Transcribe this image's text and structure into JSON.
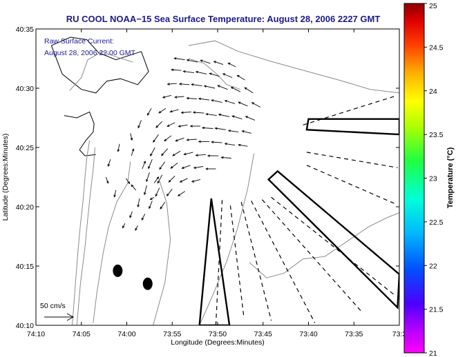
{
  "chart_data": {
    "type": "map",
    "title": "RU COOL  NOAA−15  Sea Surface Temperature:  August 28, 2006 2227 GMT",
    "inset_label": "Raw Surface Current:",
    "inset_time": "August 28, 2006 22:00 GMT",
    "scale_label": "50 cm/s",
    "xlabel": "Longitude (Degrees:Minutes)",
    "ylabel": "Latitude (Degrees:Minutes)",
    "colorbar_label": "Temperature (°C)",
    "x_ticks": [
      "74:10",
      "74:05",
      "74:00",
      "73:55",
      "73:50",
      "73:45",
      "73:40",
      "73:35",
      "73:3"
    ],
    "x_tick_minutes": [
      -610,
      -605,
      -600,
      -595,
      -590,
      -585,
      -580,
      -575,
      -570
    ],
    "y_ticks": [
      "40:35",
      "40:30",
      "40:25",
      "40:20",
      "40:15",
      "40:10"
    ],
    "y_tick_minutes": [
      2435,
      2430,
      2425,
      2420,
      2415,
      2410
    ],
    "xlim_minutes": [
      -610,
      -570
    ],
    "ylim_minutes": [
      2410,
      2435
    ],
    "colorbar_range": [
      21,
      25
    ],
    "colorbar_ticks": [
      "25",
      "24.5",
      "24",
      "23.5",
      "23",
      "22.5",
      "22",
      "21.5",
      "21"
    ],
    "colors": {
      "title": "#1a1a8c",
      "contour": "#8a8a8a",
      "vector": "#000000"
    },
    "land_masses": [
      {
        "name": "north-shore",
        "lon": [
          -608.3,
          -606.2,
          -604.4,
          -603.1,
          -601.2,
          -598.4,
          -597.6,
          -598.8,
          -600.7,
          -602.2,
          -603.4,
          -605,
          -607.1,
          -608.3
        ],
        "lat": [
          2433.6,
          2434.3,
          2434.1,
          2433,
          2432.4,
          2433.1,
          2431.4,
          2430.3,
          2430.8,
          2430.6,
          2429.6,
          2429.9,
          2431.2,
          2433.6
        ]
      },
      {
        "name": "inlet-shore",
        "lon": [
          -606.9,
          -605.5,
          -604.1,
          -603.6,
          -603.7,
          -604.5,
          -605.2,
          -604.6,
          -603.4
        ],
        "lat": [
          2427.7,
          2427.5,
          2428.0,
          2427.0,
          2426.3,
          2425.6,
          2424.8,
          2424.3,
          2424.4
        ]
      }
    ],
    "shoals": [
      {
        "lon": -601.0,
        "lat": 2414.6
      },
      {
        "lon": -597.7,
        "lat": 2413.5
      }
    ],
    "radial_lines": [
      {
        "lon": [
          -590.2,
          -589.5
        ],
        "lat": [
          2410.0,
          2420.6
        ]
      },
      {
        "lon": [
          -588.6,
          -587.1
        ],
        "lat": [
          2420.1,
          2410.6
        ]
      },
      {
        "lon": [
          -587.4,
          -584.1
        ],
        "lat": [
          2420.4,
          2410.4
        ]
      },
      {
        "lon": [
          -586.3,
          -579.3
        ],
        "lat": [
          2420.5,
          2410.2
        ]
      },
      {
        "lon": [
          -585.1,
          -574.1
        ],
        "lat": [
          2420.6,
          2411.1
        ]
      },
      {
        "lon": [
          -584.1,
          -570.6
        ],
        "lat": [
          2420.8,
          2412.6
        ]
      },
      {
        "lon": [
          -580.2,
          -570.3
        ],
        "lat": [
          2423.5,
          2420.2
        ]
      },
      {
        "lon": [
          -580.2,
          -570.2
        ],
        "lat": [
          2424.6,
          2423.3
        ]
      },
      {
        "lon": [
          -580.6,
          -570.6
        ],
        "lat": [
          2426.9,
          2429.3
        ]
      }
    ],
    "radar_cells": [
      {
        "lon": [
          -592.0,
          -590.7,
          -588.7,
          -590.7,
          -592.0
        ],
        "lat": [
          2410.0,
          2420.7,
          2410.0,
          2410.0,
          2410.0
        ]
      },
      {
        "lon": [
          -584.4,
          -583.4,
          -570.0,
          -570.2,
          -584.4
        ],
        "lat": [
          2422.3,
          2423.0,
          2414.3,
          2411.5,
          2422.3
        ]
      },
      {
        "lon": [
          -580.2,
          -580.0,
          -570.0,
          -570.0,
          -580.2
        ],
        "lat": [
          2426.5,
          2427.4,
          2427.4,
          2426.1,
          2426.5
        ]
      }
    ],
    "contours": [
      {
        "lon": [
          -606.0,
          -605.7,
          -605.4,
          -605.1,
          -604.8,
          -604.6,
          -604.4,
          -604.1
        ],
        "lat": [
          2410.0,
          2413.0,
          2416.0,
          2418.5,
          2420.6,
          2422.5,
          2424.1,
          2425.6
        ]
      },
      {
        "lon": [
          -605.5,
          -605.1,
          -604.6,
          -604.3,
          -604.0,
          -603.7,
          -603.5
        ],
        "lat": [
          2410.0,
          2413.5,
          2416.6,
          2419.0,
          2421.2,
          2423.1,
          2425.0
        ]
      },
      {
        "lon": [
          -603.7,
          -603.3,
          -602.6,
          -602.0,
          -601.1,
          -599.9,
          -599.6
        ],
        "lat": [
          2410.2,
          2412.7,
          2416.1,
          2418.3,
          2420.4,
          2422.0,
          2423.8
        ]
      },
      {
        "lon": [
          -597.1,
          -595.8,
          -595.2,
          -595.6,
          -596.4
        ],
        "lat": [
          2410.0,
          2413.6,
          2417.2,
          2420.3,
          2422.2
        ]
      },
      {
        "lon": [
          -592.0,
          -590.5,
          -589.0,
          -587.8,
          -586.7,
          -586.0
        ],
        "lat": [
          2410.0,
          2412.6,
          2415.4,
          2418.2,
          2421.5,
          2424.5
        ]
      },
      {
        "lon": [
          -586.5,
          -584.6,
          -582.7,
          -580.6,
          -578.2,
          -575.9,
          -573.4,
          -571.3,
          -570.0
        ],
        "lat": [
          2415.3,
          2414.0,
          2414.4,
          2415.6,
          2415.8,
          2417.0,
          2418.3,
          2419.1,
          2419.5
        ]
      },
      {
        "lon": [
          -593.2,
          -590.3,
          -587.7,
          -584.3,
          -581.0,
          -576.7,
          -573.2,
          -570.0
        ],
        "lat": [
          2433.6,
          2434.0,
          2433.1,
          2432.3,
          2431.6,
          2430.7,
          2429.9,
          2429.6
        ]
      },
      {
        "lon": [
          -593.2,
          -591.5,
          -590.1,
          -589.0,
          -587.5
        ],
        "lat": [
          2432.5,
          2432.1,
          2431.2,
          2430.3,
          2429.9
        ]
      },
      {
        "lon": [
          -606.3,
          -605.0,
          -604.3,
          -602.7,
          -601.0,
          -599.3
        ],
        "lat": [
          2429.8,
          2430.9,
          2432.4,
          2433.1,
          2432.6,
          2432.2
        ]
      }
    ],
    "current_vectors": [
      {
        "lon": -593.6,
        "lat": 2432.4,
        "u": -14,
        "v": 2
      },
      {
        "lon": -592.2,
        "lat": 2432.2,
        "u": -14,
        "v": 3
      },
      {
        "lon": -590.8,
        "lat": 2432.1,
        "u": -13,
        "v": 4
      },
      {
        "lon": -589.4,
        "lat": 2432.0,
        "u": -12,
        "v": 4
      },
      {
        "lon": -588.0,
        "lat": 2431.8,
        "u": -10,
        "v": 5
      },
      {
        "lon": -594.0,
        "lat": 2431.5,
        "u": -13,
        "v": 1
      },
      {
        "lon": -592.6,
        "lat": 2431.3,
        "u": -14,
        "v": 2
      },
      {
        "lon": -591.2,
        "lat": 2431.2,
        "u": -14,
        "v": 3
      },
      {
        "lon": -589.8,
        "lat": 2431.0,
        "u": -13,
        "v": 4
      },
      {
        "lon": -588.4,
        "lat": 2430.9,
        "u": -12,
        "v": 5
      },
      {
        "lon": -587.0,
        "lat": 2430.7,
        "u": -10,
        "v": 6
      },
      {
        "lon": -594.5,
        "lat": 2430.4,
        "u": -12,
        "v": -1
      },
      {
        "lon": -593.1,
        "lat": 2430.3,
        "u": -13,
        "v": 1
      },
      {
        "lon": -591.7,
        "lat": 2430.2,
        "u": -14,
        "v": 2
      },
      {
        "lon": -590.3,
        "lat": 2430.0,
        "u": -14,
        "v": 3
      },
      {
        "lon": -588.9,
        "lat": 2429.9,
        "u": -13,
        "v": 5
      },
      {
        "lon": -587.5,
        "lat": 2429.7,
        "u": -12,
        "v": 6
      },
      {
        "lon": -586.1,
        "lat": 2429.6,
        "u": -11,
        "v": 7
      },
      {
        "lon": -595.1,
        "lat": 2429.4,
        "u": -11,
        "v": -3
      },
      {
        "lon": -593.7,
        "lat": 2429.3,
        "u": -12,
        "v": -1
      },
      {
        "lon": -592.3,
        "lat": 2429.1,
        "u": -13,
        "v": 1
      },
      {
        "lon": -590.9,
        "lat": 2429.0,
        "u": -14,
        "v": 2
      },
      {
        "lon": -589.5,
        "lat": 2428.8,
        "u": -14,
        "v": 3
      },
      {
        "lon": -588.1,
        "lat": 2428.7,
        "u": -13,
        "v": 4
      },
      {
        "lon": -586.7,
        "lat": 2428.5,
        "u": -12,
        "v": 5
      },
      {
        "lon": -585.3,
        "lat": 2428.4,
        "u": -11,
        "v": 6
      },
      {
        "lon": -595.7,
        "lat": 2428.3,
        "u": -9,
        "v": -6
      },
      {
        "lon": -594.3,
        "lat": 2428.2,
        "u": -11,
        "v": -3
      },
      {
        "lon": -592.9,
        "lat": 2428.0,
        "u": -13,
        "v": -1
      },
      {
        "lon": -591.5,
        "lat": 2427.9,
        "u": -14,
        "v": 1
      },
      {
        "lon": -590.1,
        "lat": 2427.7,
        "u": -14,
        "v": 2
      },
      {
        "lon": -588.7,
        "lat": 2427.6,
        "u": -14,
        "v": 3
      },
      {
        "lon": -587.3,
        "lat": 2427.4,
        "u": -13,
        "v": 4
      },
      {
        "lon": -585.9,
        "lat": 2427.3,
        "u": -12,
        "v": 5
      },
      {
        "lon": -596.1,
        "lat": 2427.2,
        "u": -8,
        "v": -8
      },
      {
        "lon": -594.7,
        "lat": 2427.1,
        "u": -10,
        "v": -5
      },
      {
        "lon": -593.3,
        "lat": 2426.9,
        "u": -12,
        "v": -2
      },
      {
        "lon": -591.9,
        "lat": 2426.8,
        "u": -13,
        "v": 0
      },
      {
        "lon": -590.5,
        "lat": 2426.6,
        "u": -14,
        "v": 1
      },
      {
        "lon": -589.1,
        "lat": 2426.5,
        "u": -14,
        "v": 2
      },
      {
        "lon": -587.7,
        "lat": 2426.3,
        "u": -13,
        "v": 2
      },
      {
        "lon": -586.3,
        "lat": 2426.2,
        "u": -12,
        "v": 3
      },
      {
        "lon": -596.5,
        "lat": 2426.1,
        "u": -7,
        "v": -10
      },
      {
        "lon": -595.1,
        "lat": 2426.0,
        "u": -9,
        "v": -7
      },
      {
        "lon": -593.7,
        "lat": 2425.8,
        "u": -11,
        "v": -4
      },
      {
        "lon": -592.3,
        "lat": 2425.7,
        "u": -13,
        "v": -1
      },
      {
        "lon": -590.9,
        "lat": 2425.5,
        "u": -14,
        "v": 0
      },
      {
        "lon": -589.5,
        "lat": 2425.4,
        "u": -14,
        "v": 1
      },
      {
        "lon": -588.1,
        "lat": 2425.2,
        "u": -13,
        "v": 2
      },
      {
        "lon": -586.7,
        "lat": 2425.1,
        "u": -12,
        "v": 2
      },
      {
        "lon": -596.9,
        "lat": 2425.0,
        "u": -6,
        "v": -11
      },
      {
        "lon": -595.5,
        "lat": 2424.9,
        "u": -8,
        "v": -9
      },
      {
        "lon": -594.1,
        "lat": 2424.7,
        "u": -10,
        "v": -6
      },
      {
        "lon": -592.7,
        "lat": 2424.6,
        "u": -12,
        "v": -3
      },
      {
        "lon": -591.3,
        "lat": 2424.4,
        "u": -13,
        "v": -1
      },
      {
        "lon": -589.9,
        "lat": 2424.3,
        "u": -14,
        "v": 0
      },
      {
        "lon": -588.5,
        "lat": 2424.1,
        "u": -13,
        "v": 1
      },
      {
        "lon": -597.2,
        "lat": 2424.0,
        "u": -5,
        "v": -12
      },
      {
        "lon": -595.8,
        "lat": 2423.8,
        "u": -7,
        "v": -10
      },
      {
        "lon": -594.4,
        "lat": 2423.7,
        "u": -9,
        "v": -7
      },
      {
        "lon": -593.0,
        "lat": 2423.5,
        "u": -11,
        "v": -4
      },
      {
        "lon": -591.6,
        "lat": 2423.4,
        "u": -12,
        "v": -2
      },
      {
        "lon": -590.2,
        "lat": 2423.2,
        "u": -13,
        "v": 0
      },
      {
        "lon": -597.5,
        "lat": 2422.9,
        "u": -4,
        "v": -12
      },
      {
        "lon": -596.1,
        "lat": 2422.7,
        "u": -6,
        "v": -11
      },
      {
        "lon": -594.7,
        "lat": 2422.6,
        "u": -8,
        "v": -8
      },
      {
        "lon": -593.3,
        "lat": 2422.4,
        "u": -10,
        "v": -5
      },
      {
        "lon": -591.9,
        "lat": 2422.3,
        "u": -11,
        "v": -3
      },
      {
        "lon": -597.8,
        "lat": 2421.8,
        "u": -3,
        "v": -12
      },
      {
        "lon": -596.4,
        "lat": 2421.6,
        "u": -5,
        "v": -11
      },
      {
        "lon": -595.0,
        "lat": 2421.5,
        "u": -7,
        "v": -9
      },
      {
        "lon": -593.6,
        "lat": 2421.3,
        "u": -9,
        "v": -6
      },
      {
        "lon": -598.6,
        "lat": 2420.7,
        "u": -2,
        "v": -11
      },
      {
        "lon": -597.2,
        "lat": 2420.5,
        "u": -4,
        "v": -10
      },
      {
        "lon": -595.8,
        "lat": 2420.4,
        "u": -6,
        "v": -9
      },
      {
        "lon": -599.4,
        "lat": 2419.6,
        "u": -3,
        "v": -8
      },
      {
        "lon": -598.0,
        "lat": 2419.4,
        "u": -4,
        "v": -8
      },
      {
        "lon": -600.2,
        "lat": 2418.6,
        "u": -3,
        "v": -6
      },
      {
        "lon": -598.8,
        "lat": 2418.4,
        "u": -3,
        "v": -6
      },
      {
        "lon": -597.0,
        "lat": 2422.0,
        "u": 6,
        "v": 8
      },
      {
        "lon": -598.3,
        "lat": 2423.2,
        "u": 4,
        "v": 10
      },
      {
        "lon": -599.5,
        "lat": 2424.3,
        "u": 3,
        "v": 9
      },
      {
        "lon": -600.8,
        "lat": 2425.3,
        "u": -2,
        "v": -10
      },
      {
        "lon": -599.6,
        "lat": 2426.2,
        "u": 2,
        "v": -9
      },
      {
        "lon": -598.4,
        "lat": 2427.3,
        "u": -4,
        "v": -10
      },
      {
        "lon": -597.3,
        "lat": 2428.3,
        "u": -5,
        "v": -9
      },
      {
        "lon": -601.8,
        "lat": 2424.0,
        "u": -3,
        "v": -9
      },
      {
        "lon": -602.3,
        "lat": 2422.5,
        "u": 3,
        "v": -8
      },
      {
        "lon": -601.2,
        "lat": 2421.4,
        "u": -2,
        "v": -9
      },
      {
        "lon": -600.1,
        "lat": 2422.4,
        "u": 5,
        "v": -7
      },
      {
        "lon": -599.0,
        "lat": 2421.4,
        "u": -6,
        "v": 7
      },
      {
        "lon": -597.0,
        "lat": 2420.8,
        "u": -5,
        "v": -3
      }
    ]
  }
}
